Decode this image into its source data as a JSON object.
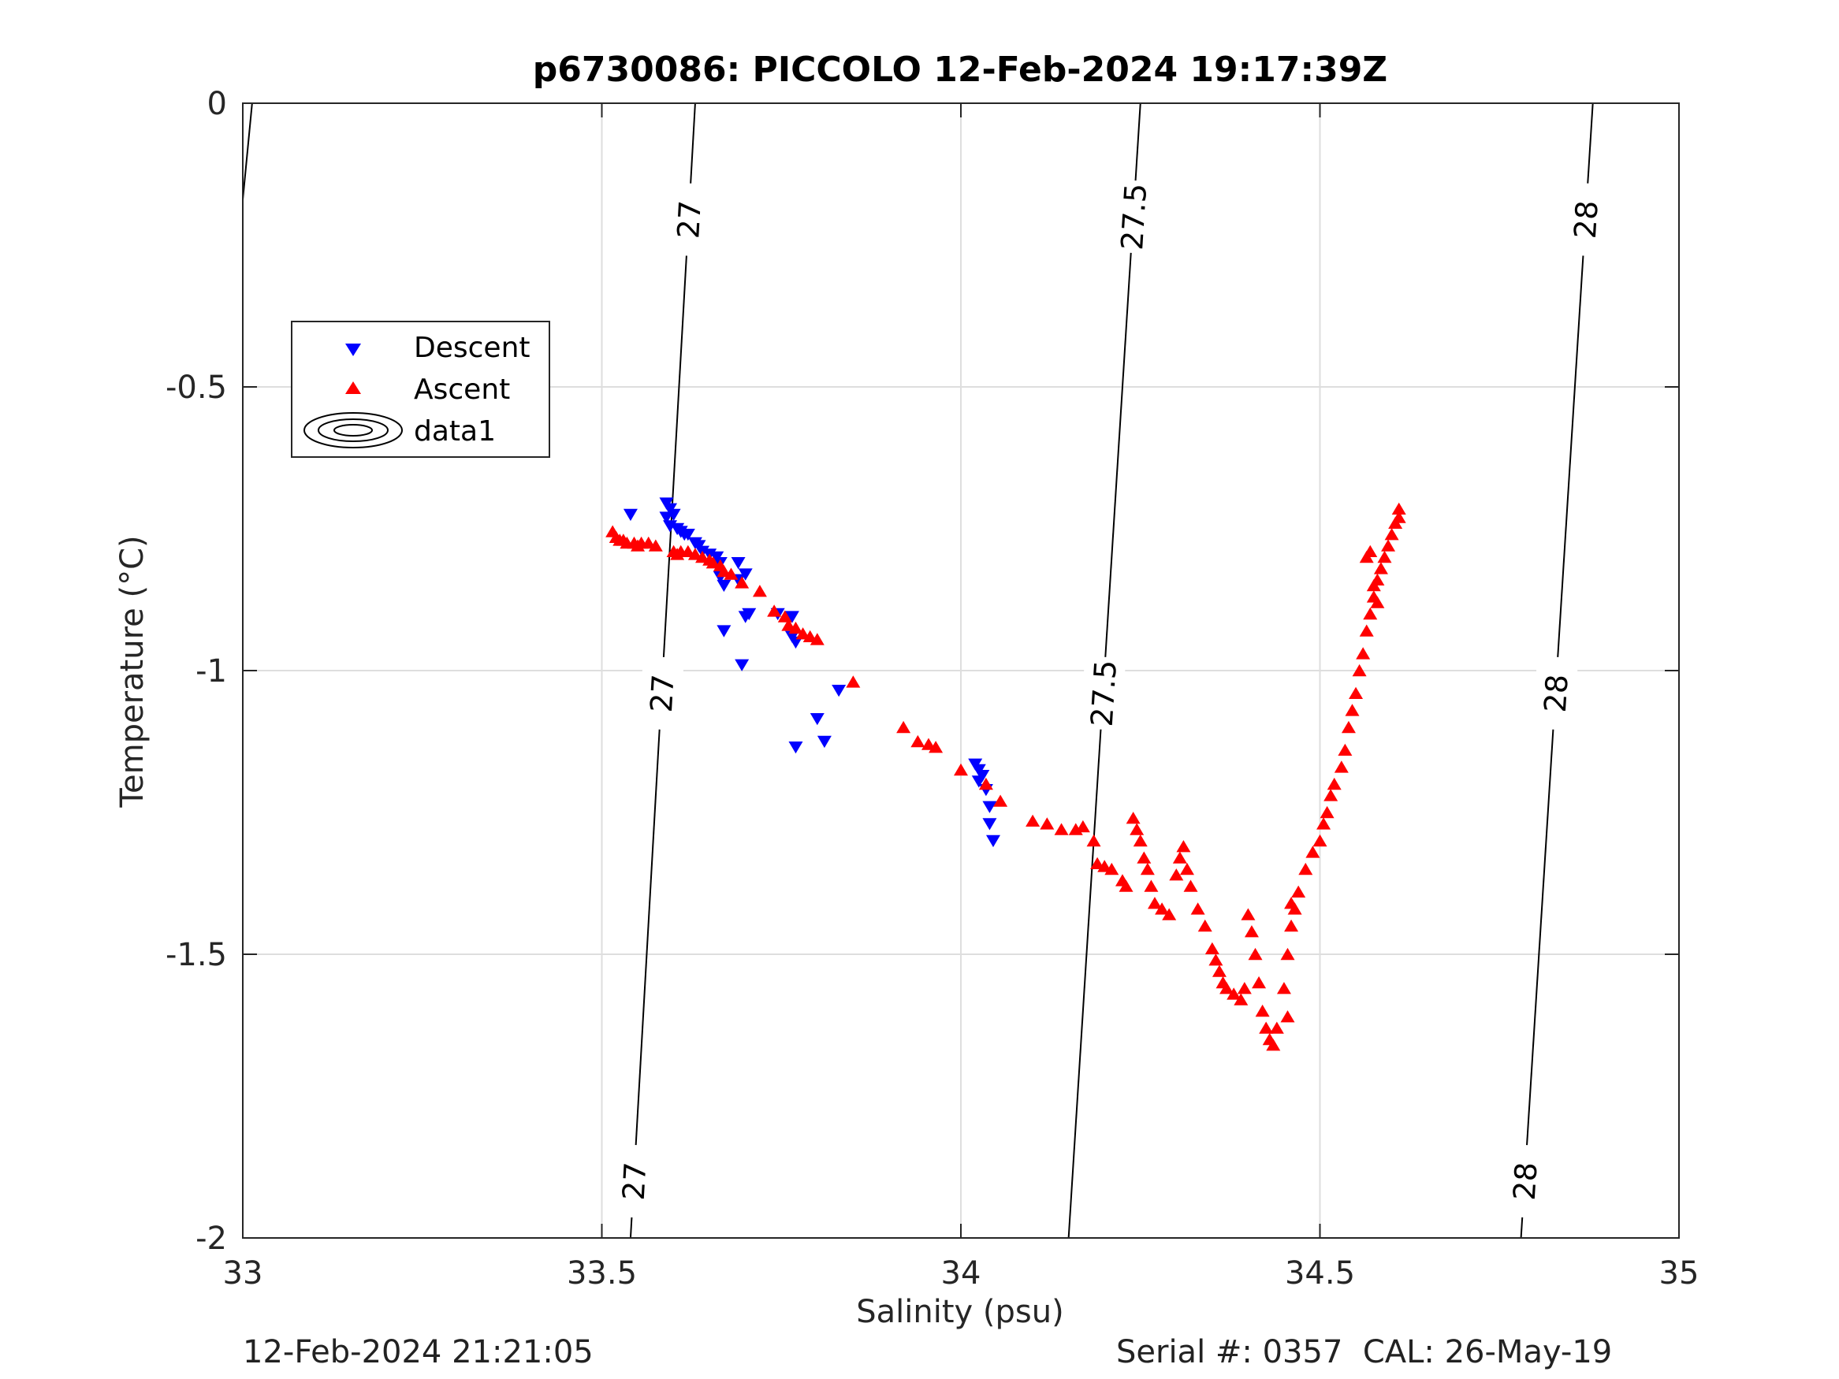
{
  "chart_data": {
    "type": "scatter",
    "title": "p6730086: PICCOLO 12-Feb-2024 19:17:39Z",
    "xlabel": "Salinity (psu)",
    "ylabel": "Temperature (°C)",
    "xlim": [
      33,
      35
    ],
    "ylim": [
      -2,
      0
    ],
    "xticks": [
      33,
      33.5,
      34,
      34.5,
      35
    ],
    "xtick_labels": [
      "33",
      "33.5",
      "34",
      "34.5",
      "35"
    ],
    "yticks": [
      0,
      -0.5,
      -1,
      -1.5,
      -2
    ],
    "ytick_labels": [
      "0",
      "-0.5",
      "-1",
      "-1.5",
      "-2"
    ],
    "grid": true,
    "legend_position": "upper-left",
    "legend": [
      "Descent",
      "Ascent",
      "data1"
    ],
    "series": [
      {
        "name": "Descent",
        "marker": "triangle-down",
        "color": "#0000ff",
        "points": [
          [
            33.54,
            -0.725
          ],
          [
            33.59,
            -0.705
          ],
          [
            33.595,
            -0.715
          ],
          [
            33.59,
            -0.73
          ],
          [
            33.6,
            -0.725
          ],
          [
            33.595,
            -0.745
          ],
          [
            33.605,
            -0.75
          ],
          [
            33.61,
            -0.755
          ],
          [
            33.615,
            -0.76
          ],
          [
            33.62,
            -0.76
          ],
          [
            33.63,
            -0.775
          ],
          [
            33.635,
            -0.78
          ],
          [
            33.64,
            -0.79
          ],
          [
            33.65,
            -0.795
          ],
          [
            33.66,
            -0.8
          ],
          [
            33.665,
            -0.81
          ],
          [
            33.69,
            -0.81
          ],
          [
            33.7,
            -0.83
          ],
          [
            33.665,
            -0.835
          ],
          [
            33.67,
            -0.85
          ],
          [
            33.69,
            -0.84
          ],
          [
            33.705,
            -0.9
          ],
          [
            33.7,
            -0.905
          ],
          [
            33.67,
            -0.93
          ],
          [
            33.695,
            -0.99
          ],
          [
            33.745,
            -0.9
          ],
          [
            33.765,
            -0.905
          ],
          [
            33.765,
            -0.94
          ],
          [
            33.77,
            -0.95
          ],
          [
            33.83,
            -1.035
          ],
          [
            33.8,
            -1.085
          ],
          [
            33.81,
            -1.125
          ],
          [
            33.77,
            -1.135
          ],
          [
            34.02,
            -1.165
          ],
          [
            34.025,
            -1.175
          ],
          [
            34.03,
            -1.185
          ],
          [
            34.025,
            -1.195
          ],
          [
            34.035,
            -1.21
          ],
          [
            34.04,
            -1.24
          ],
          [
            34.04,
            -1.27
          ],
          [
            34.045,
            -1.3
          ]
        ]
      },
      {
        "name": "Ascent",
        "marker": "triangle-up",
        "color": "#ff0000",
        "points": [
          [
            33.515,
            -0.755
          ],
          [
            33.52,
            -0.765
          ],
          [
            33.525,
            -0.77
          ],
          [
            33.53,
            -0.77
          ],
          [
            33.535,
            -0.775
          ],
          [
            33.545,
            -0.775
          ],
          [
            33.55,
            -0.78
          ],
          [
            33.555,
            -0.775
          ],
          [
            33.565,
            -0.775
          ],
          [
            33.575,
            -0.78
          ],
          [
            33.6,
            -0.79
          ],
          [
            33.605,
            -0.795
          ],
          [
            33.61,
            -0.79
          ],
          [
            33.62,
            -0.79
          ],
          [
            33.63,
            -0.795
          ],
          [
            33.64,
            -0.8
          ],
          [
            33.65,
            -0.805
          ],
          [
            33.655,
            -0.81
          ],
          [
            33.665,
            -0.815
          ],
          [
            33.67,
            -0.825
          ],
          [
            33.68,
            -0.83
          ],
          [
            33.695,
            -0.845
          ],
          [
            33.72,
            -0.86
          ],
          [
            33.74,
            -0.895
          ],
          [
            33.755,
            -0.905
          ],
          [
            33.76,
            -0.92
          ],
          [
            33.77,
            -0.925
          ],
          [
            33.78,
            -0.935
          ],
          [
            33.79,
            -0.94
          ],
          [
            33.8,
            -0.945
          ],
          [
            33.85,
            -1.02
          ],
          [
            33.92,
            -1.1
          ],
          [
            33.94,
            -1.125
          ],
          [
            33.955,
            -1.13
          ],
          [
            33.965,
            -1.135
          ],
          [
            34,
            -1.175
          ],
          [
            34.035,
            -1.2
          ],
          [
            34.055,
            -1.23
          ],
          [
            34.1,
            -1.265
          ],
          [
            34.12,
            -1.27
          ],
          [
            34.14,
            -1.28
          ],
          [
            34.16,
            -1.28
          ],
          [
            34.17,
            -1.275
          ],
          [
            34.185,
            -1.3
          ],
          [
            34.19,
            -1.34
          ],
          [
            34.2,
            -1.345
          ],
          [
            34.21,
            -1.35
          ],
          [
            34.225,
            -1.37
          ],
          [
            34.23,
            -1.38
          ],
          [
            34.24,
            -1.26
          ],
          [
            34.245,
            -1.28
          ],
          [
            34.25,
            -1.3
          ],
          [
            34.255,
            -1.33
          ],
          [
            34.26,
            -1.35
          ],
          [
            34.265,
            -1.38
          ],
          [
            34.27,
            -1.41
          ],
          [
            34.28,
            -1.42
          ],
          [
            34.29,
            -1.43
          ],
          [
            34.3,
            -1.36
          ],
          [
            34.305,
            -1.33
          ],
          [
            34.31,
            -1.31
          ],
          [
            34.315,
            -1.35
          ],
          [
            34.32,
            -1.38
          ],
          [
            34.33,
            -1.42
          ],
          [
            34.34,
            -1.45
          ],
          [
            34.35,
            -1.49
          ],
          [
            34.355,
            -1.51
          ],
          [
            34.36,
            -1.53
          ],
          [
            34.365,
            -1.55
          ],
          [
            34.37,
            -1.56
          ],
          [
            34.38,
            -1.57
          ],
          [
            34.39,
            -1.58
          ],
          [
            34.395,
            -1.56
          ],
          [
            34.4,
            -1.43
          ],
          [
            34.405,
            -1.46
          ],
          [
            34.41,
            -1.5
          ],
          [
            34.415,
            -1.55
          ],
          [
            34.42,
            -1.6
          ],
          [
            34.425,
            -1.63
          ],
          [
            34.43,
            -1.65
          ],
          [
            34.435,
            -1.66
          ],
          [
            34.44,
            -1.63
          ],
          [
            34.45,
            -1.56
          ],
          [
            34.455,
            -1.5
          ],
          [
            34.46,
            -1.45
          ],
          [
            34.465,
            -1.42
          ],
          [
            34.47,
            -1.39
          ],
          [
            34.48,
            -1.35
          ],
          [
            34.49,
            -1.32
          ],
          [
            34.5,
            -1.3
          ],
          [
            34.505,
            -1.27
          ],
          [
            34.51,
            -1.25
          ],
          [
            34.515,
            -1.22
          ],
          [
            34.52,
            -1.2
          ],
          [
            34.53,
            -1.17
          ],
          [
            34.535,
            -1.14
          ],
          [
            34.54,
            -1.1
          ],
          [
            34.545,
            -1.07
          ],
          [
            34.55,
            -1.04
          ],
          [
            34.555,
            -1
          ],
          [
            34.56,
            -0.97
          ],
          [
            34.565,
            -0.93
          ],
          [
            34.57,
            -0.9
          ],
          [
            34.575,
            -0.87
          ],
          [
            34.58,
            -0.84
          ],
          [
            34.585,
            -0.82
          ],
          [
            34.59,
            -0.8
          ],
          [
            34.595,
            -0.78
          ],
          [
            34.6,
            -0.76
          ],
          [
            34.605,
            -0.74
          ],
          [
            34.61,
            -0.73
          ],
          [
            34.61,
            -0.715
          ],
          [
            34.455,
            -1.61
          ],
          [
            34.46,
            -1.41
          ],
          [
            34.565,
            -0.8
          ],
          [
            34.57,
            -0.79
          ],
          [
            34.575,
            -0.85
          ],
          [
            34.58,
            -0.88
          ]
        ]
      }
    ],
    "contours": [
      {
        "level_label": "27",
        "points": [
          [
            33.63,
            0
          ],
          [
            33.54,
            -2
          ]
        ],
        "labels_y": [
          -0.205,
          -1.04,
          -1.9
        ]
      },
      {
        "level_label": "27.5",
        "points": [
          [
            34.25,
            0
          ],
          [
            34.15,
            -2
          ]
        ],
        "labels_y": [
          -0.2,
          -1.04
        ]
      },
      {
        "level_label": "28",
        "points": [
          [
            34.88,
            0
          ],
          [
            34.78,
            -2
          ]
        ],
        "labels_y": [
          -0.205,
          -1.04,
          -1.9
        ]
      },
      {
        "level_label": "",
        "points": [
          [
            33.013,
            0
          ],
          [
            33.0,
            -0.17
          ]
        ],
        "labels_y": []
      }
    ]
  },
  "footer": {
    "timestamp": "12-Feb-2024 21:21:05",
    "serial": "Serial #: 0357  CAL: 26-May-19"
  }
}
